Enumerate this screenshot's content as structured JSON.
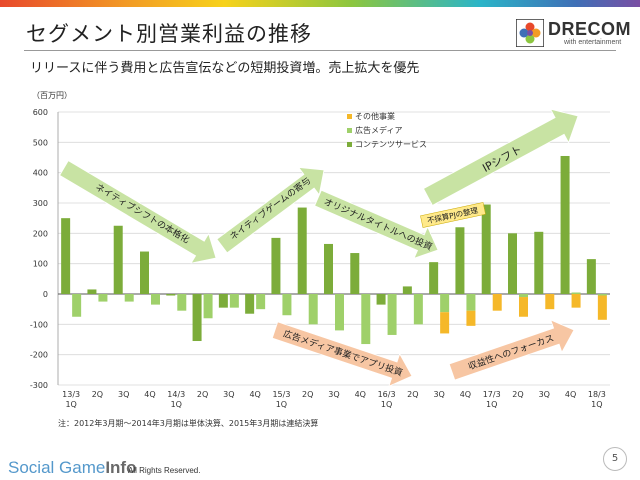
{
  "header": {
    "title": "セグメント別営業利益の推移",
    "subtitle": "リリースに伴う費用と広告宣伝などの短期投資増。売上拡大を優先",
    "logo_name": "DRECOM",
    "logo_tagline": "with entertainment"
  },
  "footer": {
    "note": "注：2012年3月期〜2014年3月期は単体決算、2015年3月期は連結決算",
    "watermark_main": "Social Game",
    "watermark_bold": "Info",
    "copyright": "All Rights Reserved.",
    "page_number": "5"
  },
  "colors": {
    "content": "#7cac3a",
    "ad_media": "#9fd06a",
    "other": "#f5b829",
    "arrow_green": "#c8e3a3",
    "arrow_orange": "#f7c6a3",
    "grid": "#d9d9d9",
    "axis": "#555555"
  },
  "chart_data": {
    "type": "bar",
    "stacking": "positive-negative",
    "unit_label": "（百万円）",
    "ylim": [
      -300,
      600
    ],
    "yticks": [
      -300,
      -200,
      -100,
      0,
      100,
      200,
      300,
      400,
      500,
      600
    ],
    "grid": true,
    "legend_position": "top-right",
    "categories": [
      [
        "13/3",
        "1Q"
      ],
      [
        "2Q"
      ],
      [
        "3Q"
      ],
      [
        "4Q"
      ],
      [
        "14/3",
        "1Q"
      ],
      [
        "2Q"
      ],
      [
        "3Q"
      ],
      [
        "4Q"
      ],
      [
        "15/3",
        "1Q"
      ],
      [
        "2Q"
      ],
      [
        "3Q"
      ],
      [
        "4Q"
      ],
      [
        "16/3",
        "1Q"
      ],
      [
        "2Q"
      ],
      [
        "3Q"
      ],
      [
        "4Q"
      ],
      [
        "17/3",
        "1Q"
      ],
      [
        "2Q"
      ],
      [
        "3Q"
      ],
      [
        "4Q"
      ],
      [
        "18/3",
        "1Q"
      ]
    ],
    "series": [
      {
        "name": "その他事業",
        "key": "other",
        "values": [
          0,
          0,
          0,
          0,
          0,
          0,
          0,
          0,
          0,
          0,
          0,
          0,
          0,
          0,
          -70,
          -50,
          -55,
          -65,
          -50,
          -45,
          -80
        ]
      },
      {
        "name": "広告メディア",
        "key": "ad_media",
        "values": [
          -75,
          -25,
          -25,
          -35,
          -55,
          -80,
          -45,
          -50,
          -70,
          -100,
          -120,
          -165,
          -135,
          -100,
          -60,
          -55,
          0,
          -10,
          0,
          5,
          -5
        ]
      },
      {
        "name": "コンテンツサービス",
        "key": "content",
        "values": [
          250,
          15,
          225,
          140,
          -5,
          -155,
          -45,
          -65,
          185,
          285,
          165,
          135,
          -35,
          25,
          105,
          220,
          295,
          200,
          205,
          455,
          115
        ]
      }
    ],
    "annotations": [
      {
        "text": "ネイティブシフトの本格化",
        "color": "green"
      },
      {
        "text": "ネイティブゲームの寄与",
        "color": "green"
      },
      {
        "text": "オリジナルタイトルへの投資",
        "color": "green"
      },
      {
        "text": "不採算PJの整理",
        "color": "label"
      },
      {
        "text": "IPシフト",
        "color": "green"
      },
      {
        "text": "広告メディア事業でアプリ投資",
        "color": "orange"
      },
      {
        "text": "収益性へのフォーカス",
        "color": "orange"
      }
    ]
  }
}
